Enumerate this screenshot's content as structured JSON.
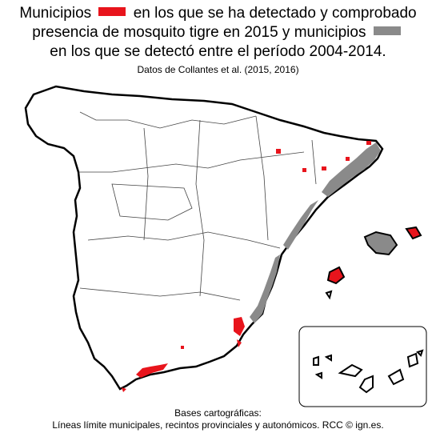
{
  "title": {
    "line1_a": "Municipios",
    "line1_b": "en los que se ha detectado y comprobado",
    "line2": "presencia de mosquito tigre en 2015 y municipios",
    "line3": "en los que se detectó entre el período 2004-2014."
  },
  "subtitle": "Datos de Collantes et al. (2015, 2016)",
  "legend": {
    "detected_2015_color": "#e8141c",
    "detected_2004_2014_color": "#8a8a8a"
  },
  "credits": {
    "line1": "Bases cartográficas:",
    "line2": "Líneas límite municipales, recintos provinciales y autonómicos. RCC © ign.es."
  }
}
